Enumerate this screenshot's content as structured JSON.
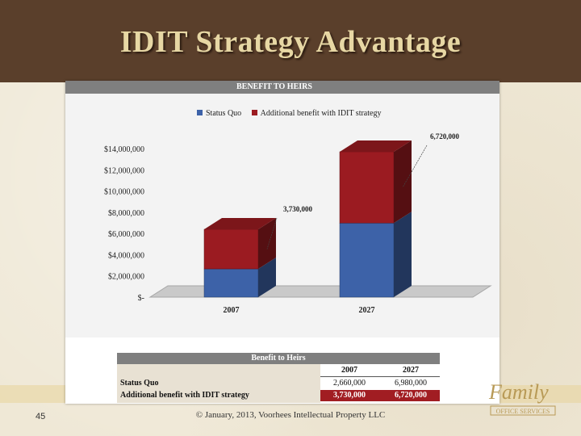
{
  "slide": {
    "title": "IDIT Strategy Advantage",
    "page_number": "45",
    "footer": "© January, 2013, Voorhees Intellectual Property LLC",
    "logo_text_top": "Family",
    "logo_text_bottom": "OFFICE SERVICES"
  },
  "chart_data": {
    "type": "bar",
    "stacked": true,
    "title": "BENEFIT TO HEIRS",
    "categories": [
      "2007",
      "2027"
    ],
    "series": [
      {
        "name": "Status Quo",
        "values": [
          2660000,
          6980000
        ],
        "color": "#3d62a8"
      },
      {
        "name": "Additional benefit with IDIT strategy",
        "values": [
          3730000,
          6720000
        ],
        "color": "#9b1b21"
      }
    ],
    "annotations": [
      "3,730,000",
      "6,720,000"
    ],
    "ylim": [
      0,
      14000000
    ],
    "yticks": [
      "$-",
      "$2,000,000",
      "$4,000,000",
      "$6,000,000",
      "$8,000,000",
      "$10,000,000",
      "$12,000,000",
      "$14,000,000"
    ],
    "legend_position": "top"
  },
  "table": {
    "title": "Benefit to Heirs",
    "columns": [
      "2007",
      "2027"
    ],
    "rows": [
      {
        "label": "Status Quo",
        "values": [
          "2,660,000",
          "6,980,000"
        ]
      },
      {
        "label": "Additional benefit with IDIT strategy",
        "values": [
          "3,730,000",
          "6,720,000"
        ]
      }
    ]
  },
  "colors": {
    "title_bar": "#5a3f2b",
    "title_text": "#e7d7a4",
    "status_quo": "#3d62a8",
    "additional": "#9b1b21",
    "table_highlight": "#a11d22"
  }
}
